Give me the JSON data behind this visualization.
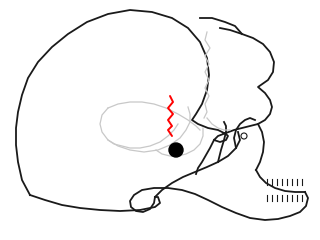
{
  "background_color": "#ffffff",
  "skull_color": "#1a1a1a",
  "skull_linewidth": 1.3,
  "inner_lines_color": "#c8c8c8",
  "inner_lines_linewidth": 0.9,
  "suture_color": "#ff0000",
  "suture_linewidth": 1.4,
  "figsize": [
    3.2,
    2.4
  ],
  "dpi": 100,
  "xlim": [
    0,
    320
  ],
  "ylim": [
    0,
    240
  ]
}
